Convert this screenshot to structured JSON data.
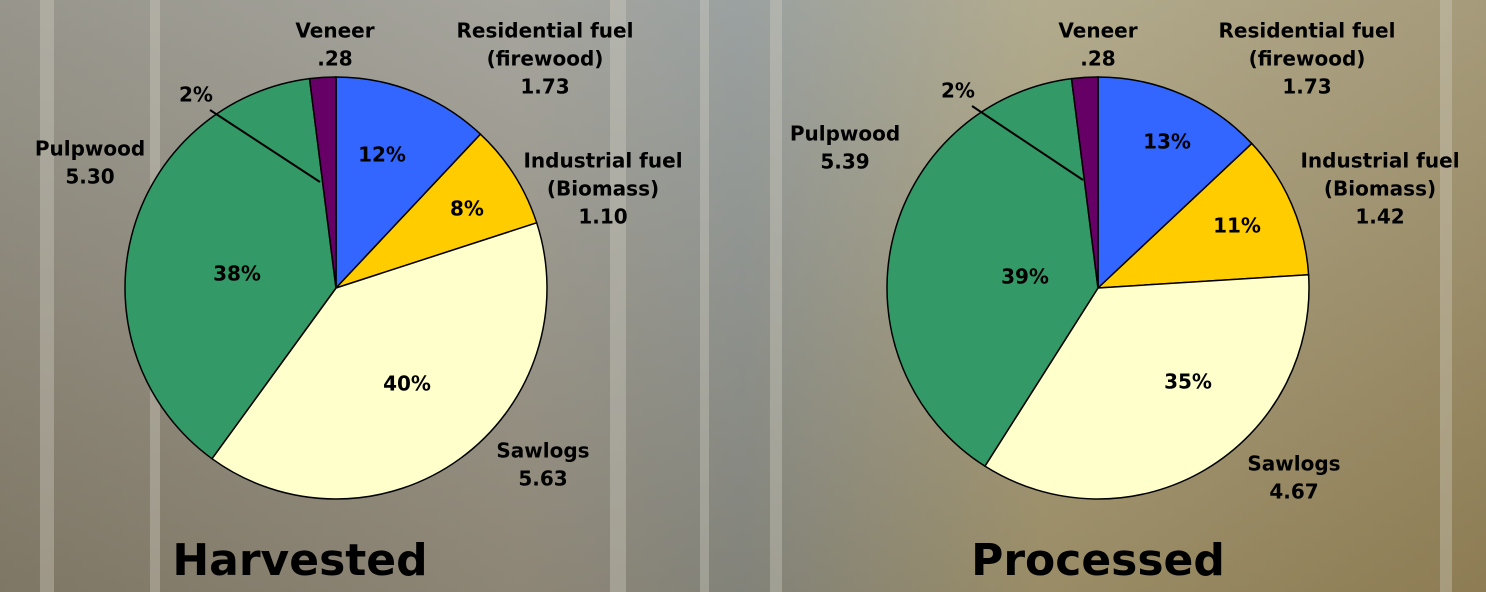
{
  "chart_data": [
    {
      "type": "pie",
      "title": "Harvested",
      "categories": [
        [
          "Residential fuel",
          "(firewood)"
        ],
        [
          "Industrial fuel",
          "(Biomass)"
        ],
        [
          "Sawlogs"
        ],
        [
          "Pulpwood"
        ],
        [
          "Veneer"
        ]
      ],
      "values": [
        12,
        8,
        40,
        38,
        2
      ],
      "value_labels": [
        "12%",
        "8%",
        "40%",
        "38%",
        "2%"
      ],
      "amounts": [
        1.73,
        1.1,
        5.63,
        5.3,
        0.28
      ],
      "amount_labels": [
        "1.73",
        "1.10",
        "5.63",
        "5.30",
        ".28"
      ],
      "colors": [
        "#3366ff",
        "#ffcc00",
        "#ffffcc",
        "#339966",
        "#660066"
      ]
    },
    {
      "type": "pie",
      "title": "Processed",
      "categories": [
        [
          "Residential fuel",
          "(firewood)"
        ],
        [
          "Industrial fuel",
          "(Biomass)"
        ],
        [
          "Sawlogs"
        ],
        [
          "Pulpwood"
        ],
        [
          "Veneer"
        ]
      ],
      "values": [
        13,
        11,
        35,
        39,
        2
      ],
      "value_labels": [
        "13%",
        "11%",
        "35%",
        "39%",
        "2%"
      ],
      "amounts": [
        1.73,
        1.42,
        4.67,
        5.39,
        0.28
      ],
      "amount_labels": [
        "1.73",
        "1.42",
        "4.67",
        "5.39",
        ".28"
      ],
      "colors": [
        "#3366ff",
        "#ffcc00",
        "#ffffcc",
        "#339966",
        "#660066"
      ]
    }
  ]
}
